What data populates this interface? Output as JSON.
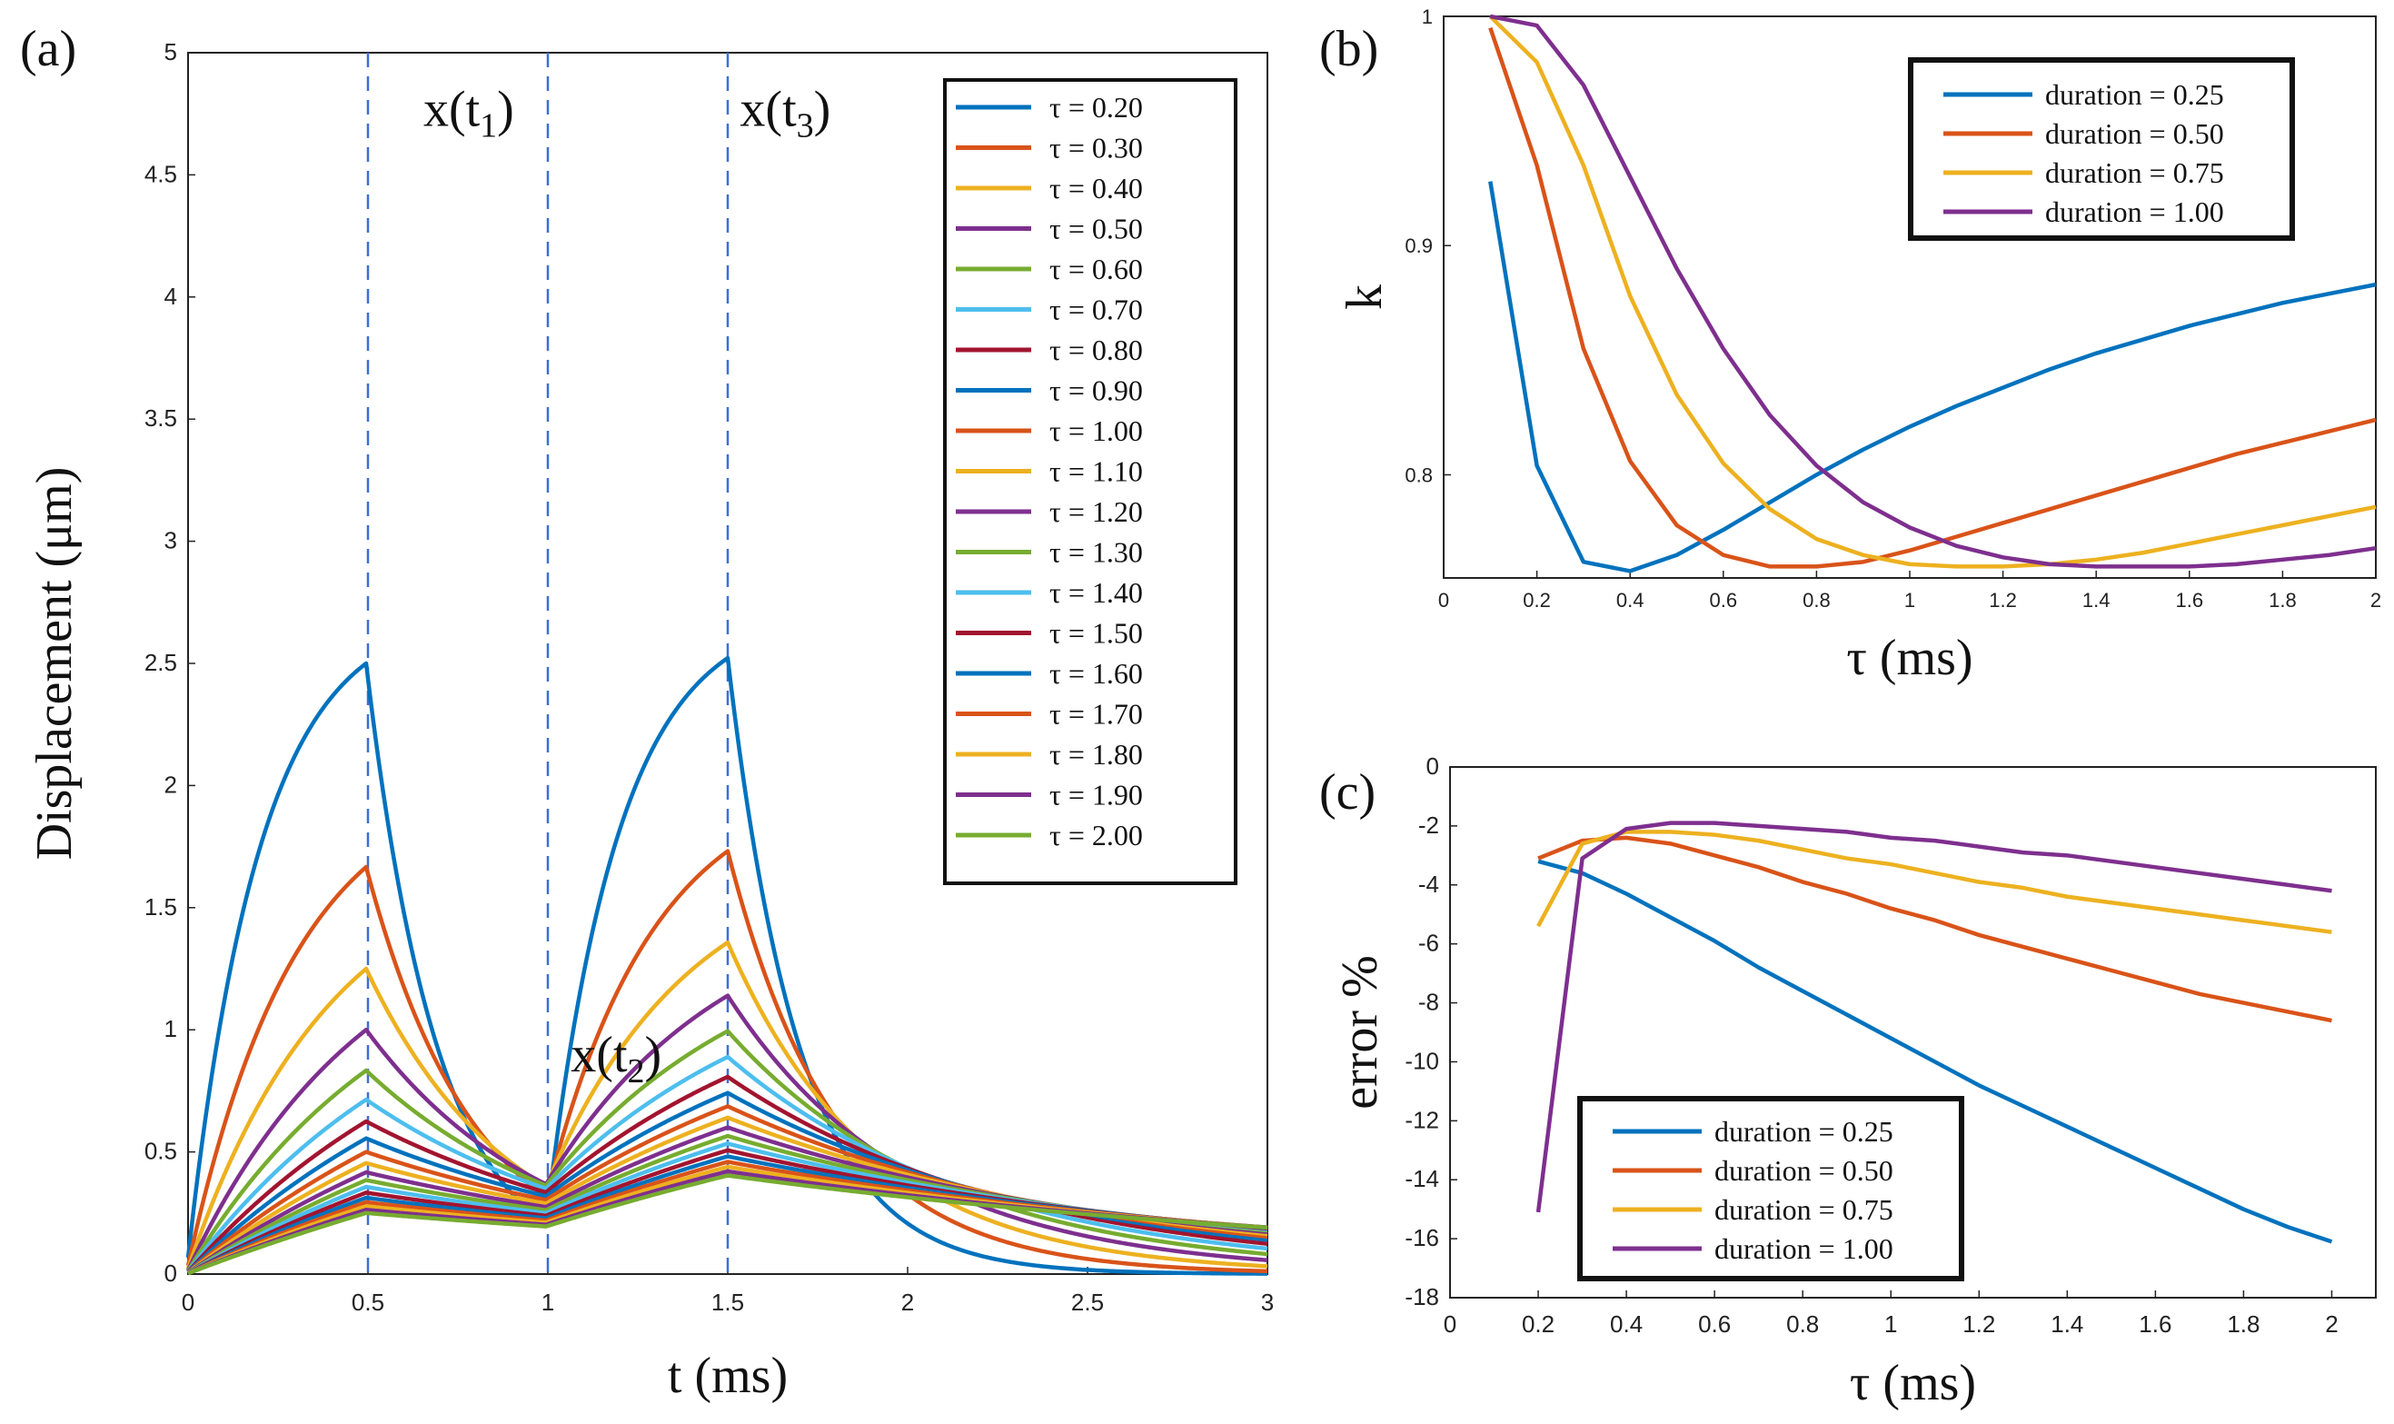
{
  "colors": [
    "#0072BD",
    "#D95319",
    "#EDB120",
    "#7E2F8E",
    "#77AC30",
    "#4DBEEE",
    "#A2142F"
  ],
  "chart_data": [
    {
      "panel": "(a)",
      "type": "line",
      "xlabel": "t (ms)",
      "ylabel": "Displacement (μm)",
      "xlim": [
        0,
        3
      ],
      "ylim": [
        0,
        5
      ],
      "xticks": [
        "0",
        "0.5",
        "1",
        "1.5",
        "2",
        "2.5",
        "3"
      ],
      "yticks": [
        "0",
        "0.5",
        "1",
        "1.5",
        "2",
        "2.5",
        "3",
        "3.5",
        "4",
        "4.5",
        "5"
      ],
      "legend_position": "top-right",
      "pulse": {
        "on1": [
          0,
          0.5
        ],
        "on2": [
          1,
          1.5
        ],
        "end": 3
      },
      "vlines": [
        0.5,
        1,
        1.5
      ],
      "annotations": [
        {
          "base": "x(t",
          "sub": "1",
          "close": ")",
          "at": [
            0.78,
            4.7
          ]
        },
        {
          "base": "x(t",
          "sub": "3",
          "close": ")",
          "at": [
            1.66,
            4.7
          ]
        },
        {
          "base": "x(t",
          "sub": "2",
          "close": ")",
          "at": [
            1.19,
            0.83
          ]
        }
      ],
      "series": [
        {
          "name": "τ = 0.20",
          "tau": 0.2
        },
        {
          "name": "τ = 0.30",
          "tau": 0.3
        },
        {
          "name": "τ = 0.40",
          "tau": 0.4
        },
        {
          "name": "τ = 0.50",
          "tau": 0.5
        },
        {
          "name": "τ = 0.60",
          "tau": 0.6
        },
        {
          "name": "τ = 0.70",
          "tau": 0.7
        },
        {
          "name": "τ = 0.80",
          "tau": 0.8
        },
        {
          "name": "τ = 0.90",
          "tau": 0.9
        },
        {
          "name": "τ = 1.00",
          "tau": 1.0
        },
        {
          "name": "τ = 1.10",
          "tau": 1.1
        },
        {
          "name": "τ = 1.20",
          "tau": 1.2
        },
        {
          "name": "τ = 1.30",
          "tau": 1.3
        },
        {
          "name": "τ = 1.40",
          "tau": 1.4
        },
        {
          "name": "τ = 1.50",
          "tau": 1.5
        },
        {
          "name": "τ = 1.60",
          "tau": 1.6
        },
        {
          "name": "τ = 1.70",
          "tau": 1.7
        },
        {
          "name": "τ = 1.80",
          "tau": 1.8
        },
        {
          "name": "τ = 1.90",
          "tau": 1.9
        },
        {
          "name": "τ = 2.00",
          "tau": 2.0
        }
      ]
    },
    {
      "panel": "(b)",
      "type": "line",
      "xlabel": "τ (ms)",
      "ylabel": "k",
      "xlim": [
        0,
        2
      ],
      "ylim": [
        0.755,
        1.0
      ],
      "xticks": [
        "0",
        "0.2",
        "0.4",
        "0.6",
        "0.8",
        "1",
        "1.2",
        "1.4",
        "1.6",
        "1.8",
        "2"
      ],
      "yticks": [
        {
          "v": 0.8,
          "label": "0.8"
        },
        {
          "v": 0.9,
          "label": "0.9"
        },
        {
          "v": 1.0,
          "label": "1"
        }
      ],
      "legend_position": "top-right",
      "x": [
        0.1,
        0.2,
        0.3,
        0.4,
        0.5,
        0.6,
        0.7,
        0.8,
        0.9,
        1.0,
        1.1,
        1.2,
        1.3,
        1.4,
        1.5,
        1.6,
        1.7,
        1.8,
        1.9,
        2.0
      ],
      "series": [
        {
          "name": "duration = 0.25",
          "values": [
            0.928,
            0.804,
            0.762,
            0.758,
            0.765,
            0.776,
            0.788,
            0.8,
            0.811,
            0.821,
            0.83,
            0.838,
            0.846,
            0.853,
            0.859,
            0.865,
            0.87,
            0.875,
            0.879,
            0.883
          ]
        },
        {
          "name": "duration = 0.50",
          "values": [
            0.995,
            0.935,
            0.855,
            0.806,
            0.778,
            0.765,
            0.76,
            0.76,
            0.762,
            0.767,
            0.773,
            0.779,
            0.785,
            0.791,
            0.797,
            0.803,
            0.809,
            0.814,
            0.819,
            0.824
          ]
        },
        {
          "name": "duration = 0.75",
          "values": [
            1.0,
            0.98,
            0.935,
            0.878,
            0.835,
            0.805,
            0.785,
            0.772,
            0.765,
            0.761,
            0.76,
            0.76,
            0.761,
            0.763,
            0.766,
            0.77,
            0.774,
            0.778,
            0.782,
            0.786
          ]
        },
        {
          "name": "duration = 1.00",
          "values": [
            1.0,
            0.996,
            0.97,
            0.93,
            0.89,
            0.855,
            0.826,
            0.804,
            0.788,
            0.777,
            0.769,
            0.764,
            0.761,
            0.76,
            0.76,
            0.76,
            0.761,
            0.763,
            0.765,
            0.768
          ]
        }
      ]
    },
    {
      "panel": "(c)",
      "type": "line",
      "xlabel": "τ (ms)",
      "ylabel": "error %",
      "xlim": [
        0,
        2.1
      ],
      "ylim": [
        -18,
        0
      ],
      "xticks": [
        "0",
        "0.2",
        "0.4",
        "0.6",
        "0.8",
        "1",
        "1.2",
        "1.4",
        "1.6",
        "1.8",
        "2"
      ],
      "yticks": [
        "0",
        "-2",
        "-4",
        "-6",
        "-8",
        "-10",
        "-12",
        "-14",
        "-16",
        "-18"
      ],
      "legend_position": "bottom-left",
      "x": [
        0.2,
        0.3,
        0.4,
        0.5,
        0.6,
        0.7,
        0.8,
        0.9,
        1.0,
        1.1,
        1.2,
        1.3,
        1.4,
        1.5,
        1.6,
        1.7,
        1.8,
        1.9,
        2.0
      ],
      "series": [
        {
          "name": "duration = 0.25",
          "values": [
            -3.2,
            -3.6,
            -4.3,
            -5.1,
            -5.9,
            -6.8,
            -7.6,
            -8.4,
            -9.2,
            -10.0,
            -10.8,
            -11.5,
            -12.2,
            -12.9,
            -13.6,
            -14.3,
            -15.0,
            -15.6,
            -16.1
          ]
        },
        {
          "name": "duration = 0.50",
          "values": [
            -3.1,
            -2.5,
            -2.4,
            -2.6,
            -3.0,
            -3.4,
            -3.9,
            -4.3,
            -4.8,
            -5.2,
            -5.7,
            -6.1,
            -6.5,
            -6.9,
            -7.3,
            -7.7,
            -8.0,
            -8.3,
            -8.6
          ]
        },
        {
          "name": "duration = 0.75",
          "values": [
            -5.4,
            -2.6,
            -2.2,
            -2.2,
            -2.3,
            -2.5,
            -2.8,
            -3.1,
            -3.3,
            -3.6,
            -3.9,
            -4.1,
            -4.4,
            -4.6,
            -4.8,
            -5.0,
            -5.2,
            -5.4,
            -5.6
          ]
        },
        {
          "name": "duration = 1.00",
          "values": [
            -15.1,
            -3.1,
            -2.1,
            -1.9,
            -1.9,
            -2.0,
            -2.1,
            -2.2,
            -2.4,
            -2.5,
            -2.7,
            -2.9,
            -3.0,
            -3.2,
            -3.4,
            -3.6,
            -3.8,
            -4.0,
            -4.2
          ]
        }
      ]
    }
  ]
}
